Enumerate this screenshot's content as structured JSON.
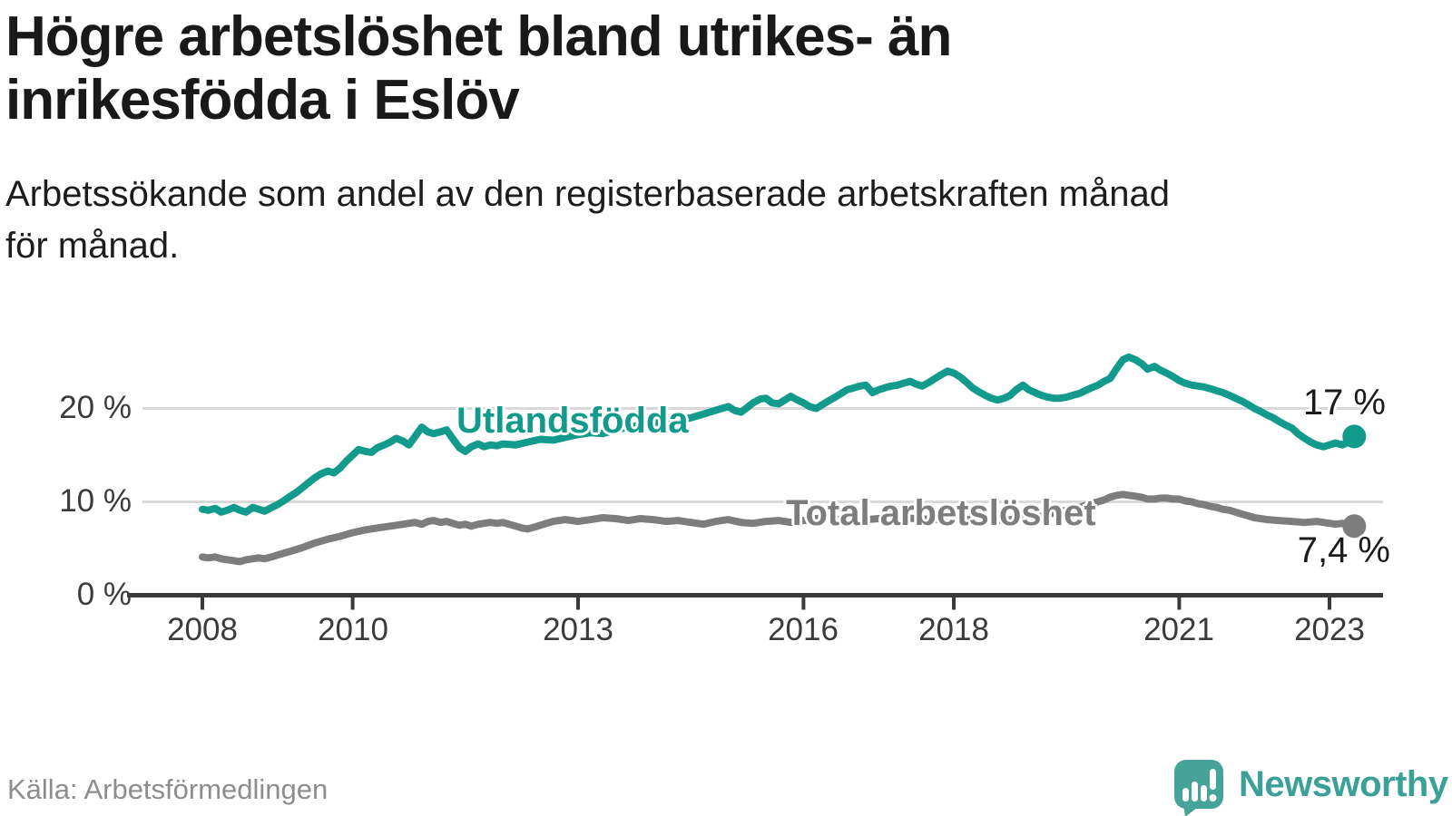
{
  "header": {
    "title_line1": "Högre arbetslöshet bland utrikes- än",
    "title_line2": "inrikesfödda i Eslöv",
    "subtitle_line1": "Arbetssökande som andel av den registerbaserade arbetskraften månad",
    "subtitle_line2": "för månad."
  },
  "footer": {
    "source": "Källa: Arbetsförmedlingen",
    "brand": "Newsworthy"
  },
  "colors": {
    "accent_teal": "#129a8c",
    "series_gray": "#7d7d7d",
    "grid": "#d9d9d9",
    "axis": "#3a3a3a",
    "brand_teal": "#46a39a"
  },
  "chart_data": {
    "type": "line",
    "title": "Högre arbetslöshet bland utrikes- än inrikesfödda i Eslöv",
    "subtitle": "Arbetssökande som andel av den registerbaserade arbetskraften månad för månad.",
    "unit": "%",
    "grid": "horizontal",
    "legend": "inline-labels",
    "xlim": [
      2008,
      2023.42
    ],
    "ylim": [
      0,
      27
    ],
    "x_axis": {
      "ticks": [
        "2008",
        "2010",
        "2013",
        "2016",
        "2018",
        "2021",
        "2023"
      ],
      "tick_years": [
        2008,
        2010,
        2013,
        2016,
        2018,
        2021,
        2023
      ]
    },
    "y_axis": {
      "ticks": [
        "0 %",
        "10 %",
        "20 %"
      ],
      "tick_values": [
        0,
        10,
        20
      ]
    },
    "series": [
      {
        "name": "Utlandsfödda",
        "color": "#129a8c",
        "end_label": "17 %",
        "end_value": 17,
        "points": [
          [
            2008,
            9.2
          ],
          [
            2008.08,
            9.1
          ],
          [
            2008.17,
            9.3
          ],
          [
            2008.25,
            8.9
          ],
          [
            2008.33,
            9.1
          ],
          [
            2008.42,
            9.4
          ],
          [
            2008.5,
            9.1
          ],
          [
            2008.58,
            8.9
          ],
          [
            2008.67,
            9.4
          ],
          [
            2008.75,
            9.2
          ],
          [
            2008.83,
            9.0
          ],
          [
            2008.92,
            9.4
          ],
          [
            2009,
            9.7
          ],
          [
            2009.08,
            10.1
          ],
          [
            2009.17,
            10.6
          ],
          [
            2009.25,
            11.0
          ],
          [
            2009.33,
            11.5
          ],
          [
            2009.42,
            12.1
          ],
          [
            2009.5,
            12.6
          ],
          [
            2009.58,
            13.0
          ],
          [
            2009.67,
            13.3
          ],
          [
            2009.75,
            13.1
          ],
          [
            2009.83,
            13.6
          ],
          [
            2009.92,
            14.4
          ],
          [
            2010,
            15.0
          ],
          [
            2010.08,
            15.6
          ],
          [
            2010.17,
            15.4
          ],
          [
            2010.25,
            15.3
          ],
          [
            2010.33,
            15.8
          ],
          [
            2010.42,
            16.1
          ],
          [
            2010.5,
            16.4
          ],
          [
            2010.58,
            16.8
          ],
          [
            2010.67,
            16.5
          ],
          [
            2010.75,
            16.1
          ],
          [
            2010.83,
            17.0
          ],
          [
            2010.92,
            18.0
          ],
          [
            2011,
            17.5
          ],
          [
            2011.08,
            17.3
          ],
          [
            2011.17,
            17.5
          ],
          [
            2011.25,
            17.7
          ],
          [
            2011.33,
            16.8
          ],
          [
            2011.42,
            15.8
          ],
          [
            2011.5,
            15.4
          ],
          [
            2011.58,
            15.9
          ],
          [
            2011.67,
            16.2
          ],
          [
            2011.75,
            15.9
          ],
          [
            2011.83,
            16.1
          ],
          [
            2011.92,
            16.0
          ],
          [
            2012,
            16.2
          ],
          [
            2012.17,
            16.1
          ],
          [
            2012.33,
            16.4
          ],
          [
            2012.5,
            16.7
          ],
          [
            2012.67,
            16.6
          ],
          [
            2012.83,
            16.9
          ],
          [
            2013,
            17.2
          ],
          [
            2013.17,
            17.4
          ],
          [
            2013.33,
            17.3
          ],
          [
            2013.5,
            17.7
          ],
          [
            2013.67,
            18.0
          ],
          [
            2013.83,
            18.2
          ],
          [
            2014,
            18.5
          ],
          [
            2014.17,
            18.4
          ],
          [
            2014.33,
            18.7
          ],
          [
            2014.5,
            19.0
          ],
          [
            2014.67,
            19.4
          ],
          [
            2014.83,
            19.8
          ],
          [
            2015,
            20.2
          ],
          [
            2015.08,
            19.8
          ],
          [
            2015.17,
            19.6
          ],
          [
            2015.25,
            20.1
          ],
          [
            2015.33,
            20.6
          ],
          [
            2015.42,
            21.0
          ],
          [
            2015.5,
            21.1
          ],
          [
            2015.58,
            20.6
          ],
          [
            2015.67,
            20.5
          ],
          [
            2015.75,
            20.9
          ],
          [
            2015.83,
            21.3
          ],
          [
            2015.92,
            20.9
          ],
          [
            2016,
            20.6
          ],
          [
            2016.08,
            20.2
          ],
          [
            2016.17,
            20.0
          ],
          [
            2016.25,
            20.4
          ],
          [
            2016.33,
            20.8
          ],
          [
            2016.42,
            21.2
          ],
          [
            2016.5,
            21.6
          ],
          [
            2016.58,
            22.0
          ],
          [
            2016.67,
            22.2
          ],
          [
            2016.75,
            22.4
          ],
          [
            2016.83,
            22.5
          ],
          [
            2016.92,
            21.7
          ],
          [
            2017,
            22.0
          ],
          [
            2017.08,
            22.2
          ],
          [
            2017.17,
            22.4
          ],
          [
            2017.25,
            22.5
          ],
          [
            2017.33,
            22.7
          ],
          [
            2017.42,
            22.9
          ],
          [
            2017.5,
            22.6
          ],
          [
            2017.58,
            22.4
          ],
          [
            2017.67,
            22.8
          ],
          [
            2017.75,
            23.2
          ],
          [
            2017.83,
            23.6
          ],
          [
            2017.92,
            24.0
          ],
          [
            2018,
            23.8
          ],
          [
            2018.08,
            23.4
          ],
          [
            2018.17,
            22.8
          ],
          [
            2018.25,
            22.2
          ],
          [
            2018.33,
            21.8
          ],
          [
            2018.42,
            21.4
          ],
          [
            2018.5,
            21.1
          ],
          [
            2018.58,
            20.9
          ],
          [
            2018.67,
            21.1
          ],
          [
            2018.75,
            21.4
          ],
          [
            2018.83,
            22.0
          ],
          [
            2018.92,
            22.5
          ],
          [
            2019,
            22.0
          ],
          [
            2019.08,
            21.7
          ],
          [
            2019.17,
            21.4
          ],
          [
            2019.25,
            21.2
          ],
          [
            2019.33,
            21.1
          ],
          [
            2019.42,
            21.1
          ],
          [
            2019.5,
            21.2
          ],
          [
            2019.58,
            21.4
          ],
          [
            2019.67,
            21.6
          ],
          [
            2019.75,
            21.9
          ],
          [
            2019.83,
            22.2
          ],
          [
            2019.92,
            22.5
          ],
          [
            2020,
            22.9
          ],
          [
            2020.08,
            23.2
          ],
          [
            2020.17,
            24.3
          ],
          [
            2020.25,
            25.2
          ],
          [
            2020.33,
            25.5
          ],
          [
            2020.42,
            25.2
          ],
          [
            2020.5,
            24.8
          ],
          [
            2020.58,
            24.2
          ],
          [
            2020.67,
            24.5
          ],
          [
            2020.75,
            24.1
          ],
          [
            2020.83,
            23.8
          ],
          [
            2020.92,
            23.4
          ],
          [
            2021,
            23.0
          ],
          [
            2021.08,
            22.7
          ],
          [
            2021.17,
            22.5
          ],
          [
            2021.25,
            22.4
          ],
          [
            2021.33,
            22.3
          ],
          [
            2021.42,
            22.1
          ],
          [
            2021.5,
            21.9
          ],
          [
            2021.58,
            21.7
          ],
          [
            2021.67,
            21.4
          ],
          [
            2021.75,
            21.1
          ],
          [
            2021.83,
            20.8
          ],
          [
            2021.92,
            20.4
          ],
          [
            2022,
            20.0
          ],
          [
            2022.08,
            19.7
          ],
          [
            2022.17,
            19.3
          ],
          [
            2022.25,
            19.0
          ],
          [
            2022.33,
            18.6
          ],
          [
            2022.42,
            18.2
          ],
          [
            2022.5,
            17.9
          ],
          [
            2022.58,
            17.3
          ],
          [
            2022.67,
            16.8
          ],
          [
            2022.75,
            16.4
          ],
          [
            2022.83,
            16.1
          ],
          [
            2022.92,
            15.9
          ],
          [
            2023,
            16.1
          ],
          [
            2023.08,
            16.3
          ],
          [
            2023.17,
            16.1
          ],
          [
            2023.25,
            16.4
          ],
          [
            2023.33,
            17.0
          ]
        ]
      },
      {
        "name": "Total arbetslöshet",
        "color": "#7d7d7d",
        "end_label": "7,4 %",
        "end_value": 7.4,
        "points": [
          [
            2008,
            4.1
          ],
          [
            2008.08,
            4.0
          ],
          [
            2008.17,
            4.1
          ],
          [
            2008.25,
            3.9
          ],
          [
            2008.33,
            3.8
          ],
          [
            2008.42,
            3.7
          ],
          [
            2008.5,
            3.6
          ],
          [
            2008.58,
            3.8
          ],
          [
            2008.67,
            3.9
          ],
          [
            2008.75,
            4.0
          ],
          [
            2008.83,
            3.9
          ],
          [
            2008.92,
            4.1
          ],
          [
            2009,
            4.3
          ],
          [
            2009.17,
            4.7
          ],
          [
            2009.33,
            5.1
          ],
          [
            2009.5,
            5.6
          ],
          [
            2009.67,
            6.0
          ],
          [
            2009.83,
            6.3
          ],
          [
            2010,
            6.7
          ],
          [
            2010.17,
            7.0
          ],
          [
            2010.33,
            7.2
          ],
          [
            2010.5,
            7.4
          ],
          [
            2010.67,
            7.6
          ],
          [
            2010.83,
            7.8
          ],
          [
            2010.92,
            7.6
          ],
          [
            2011,
            7.9
          ],
          [
            2011.08,
            8.0
          ],
          [
            2011.17,
            7.8
          ],
          [
            2011.25,
            7.9
          ],
          [
            2011.33,
            7.7
          ],
          [
            2011.42,
            7.5
          ],
          [
            2011.5,
            7.6
          ],
          [
            2011.58,
            7.4
          ],
          [
            2011.67,
            7.6
          ],
          [
            2011.75,
            7.7
          ],
          [
            2011.83,
            7.8
          ],
          [
            2011.92,
            7.7
          ],
          [
            2012,
            7.8
          ],
          [
            2012.08,
            7.6
          ],
          [
            2012.17,
            7.4
          ],
          [
            2012.25,
            7.2
          ],
          [
            2012.33,
            7.1
          ],
          [
            2012.42,
            7.3
          ],
          [
            2012.5,
            7.5
          ],
          [
            2012.58,
            7.7
          ],
          [
            2012.67,
            7.9
          ],
          [
            2012.75,
            8.0
          ],
          [
            2012.83,
            8.1
          ],
          [
            2012.92,
            8.0
          ],
          [
            2013,
            7.9
          ],
          [
            2013.17,
            8.1
          ],
          [
            2013.33,
            8.3
          ],
          [
            2013.5,
            8.2
          ],
          [
            2013.67,
            8.0
          ],
          [
            2013.83,
            8.2
          ],
          [
            2014,
            8.1
          ],
          [
            2014.17,
            7.9
          ],
          [
            2014.33,
            8.0
          ],
          [
            2014.5,
            7.8
          ],
          [
            2014.67,
            7.6
          ],
          [
            2014.83,
            7.9
          ],
          [
            2015,
            8.1
          ],
          [
            2015.17,
            7.8
          ],
          [
            2015.33,
            7.7
          ],
          [
            2015.5,
            7.9
          ],
          [
            2015.67,
            8.0
          ],
          [
            2015.83,
            7.8
          ],
          [
            2016,
            8.0
          ],
          [
            2016.17,
            8.2
          ],
          [
            2016.33,
            8.3
          ],
          [
            2016.5,
            8.1
          ],
          [
            2016.67,
            8.0
          ],
          [
            2016.83,
            8.1
          ],
          [
            2017,
            8.2
          ],
          [
            2017.25,
            8.3
          ],
          [
            2017.5,
            8.2
          ],
          [
            2017.75,
            8.1
          ],
          [
            2018,
            8.2
          ],
          [
            2018.25,
            8.1
          ],
          [
            2018.5,
            8.0
          ],
          [
            2018.75,
            8.1
          ],
          [
            2019,
            8.3
          ],
          [
            2019.17,
            8.5
          ],
          [
            2019.33,
            8.8
          ],
          [
            2019.5,
            9.1
          ],
          [
            2019.67,
            9.4
          ],
          [
            2019.83,
            9.8
          ],
          [
            2020,
            10.2
          ],
          [
            2020.08,
            10.5
          ],
          [
            2020.17,
            10.7
          ],
          [
            2020.25,
            10.8
          ],
          [
            2020.33,
            10.7
          ],
          [
            2020.42,
            10.6
          ],
          [
            2020.5,
            10.5
          ],
          [
            2020.58,
            10.3
          ],
          [
            2020.67,
            10.3
          ],
          [
            2020.75,
            10.4
          ],
          [
            2020.83,
            10.4
          ],
          [
            2020.92,
            10.3
          ],
          [
            2021,
            10.3
          ],
          [
            2021.08,
            10.1
          ],
          [
            2021.17,
            10.0
          ],
          [
            2021.25,
            9.8
          ],
          [
            2021.33,
            9.7
          ],
          [
            2021.42,
            9.5
          ],
          [
            2021.5,
            9.4
          ],
          [
            2021.58,
            9.2
          ],
          [
            2021.67,
            9.1
          ],
          [
            2021.75,
            8.9
          ],
          [
            2021.83,
            8.7
          ],
          [
            2021.92,
            8.5
          ],
          [
            2022,
            8.3
          ],
          [
            2022.17,
            8.1
          ],
          [
            2022.33,
            8.0
          ],
          [
            2022.5,
            7.9
          ],
          [
            2022.67,
            7.8
          ],
          [
            2022.83,
            7.9
          ],
          [
            2023,
            7.7
          ],
          [
            2023.08,
            7.6
          ],
          [
            2023.17,
            7.7
          ],
          [
            2023.25,
            7.5
          ],
          [
            2023.33,
            7.4
          ]
        ]
      }
    ]
  }
}
